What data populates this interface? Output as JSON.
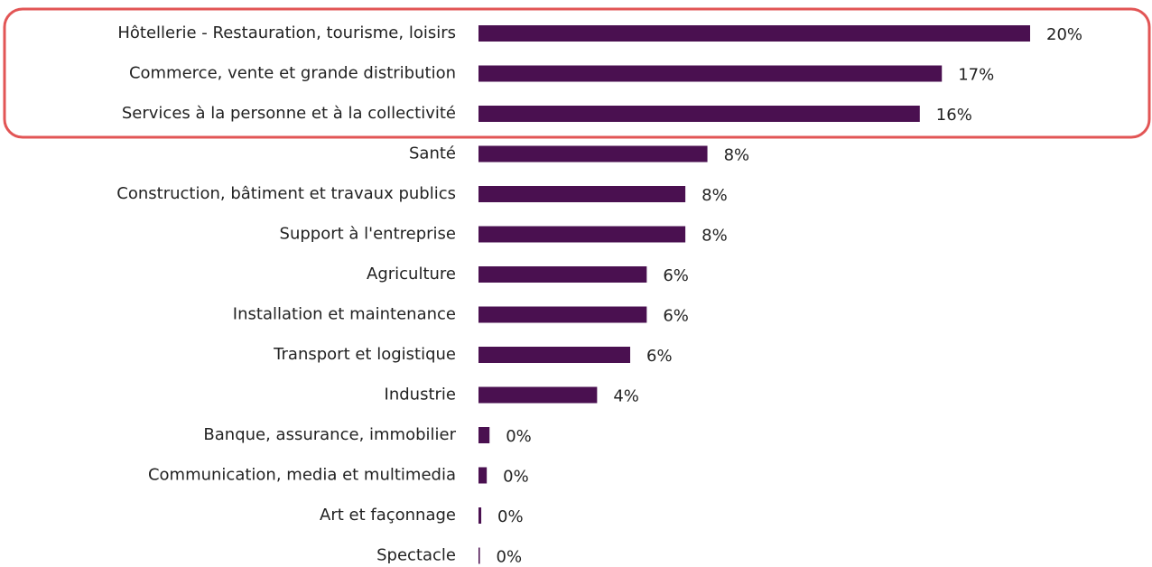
{
  "chart_data": {
    "type": "bar",
    "orientation": "horizontal",
    "categories": [
      "Hôtellerie - Restauration, tourisme, loisirs",
      "Commerce, vente et grande distribution",
      "Services à la personne et à la collectivité",
      "Santé",
      "Construction, bâtiment et travaux publics",
      "Support à l'entreprise",
      "Agriculture",
      "Installation et maintenance",
      "Transport et logistique",
      "Industrie",
      "Banque, assurance, immobilier",
      "Communication, media et multimedia",
      "Art et façonnage",
      "Spectacle"
    ],
    "values": [
      20.0,
      16.8,
      16.0,
      8.3,
      7.5,
      7.5,
      6.1,
      6.1,
      5.5,
      4.3,
      0.4,
      0.3,
      0.1,
      0.05
    ],
    "value_labels": [
      "20%",
      "17%",
      "16%",
      "8%",
      "8%",
      "8%",
      "6%",
      "6%",
      "6%",
      "4%",
      "0%",
      "0%",
      "0%",
      "0%"
    ],
    "color": "#4a1050"
  }
}
